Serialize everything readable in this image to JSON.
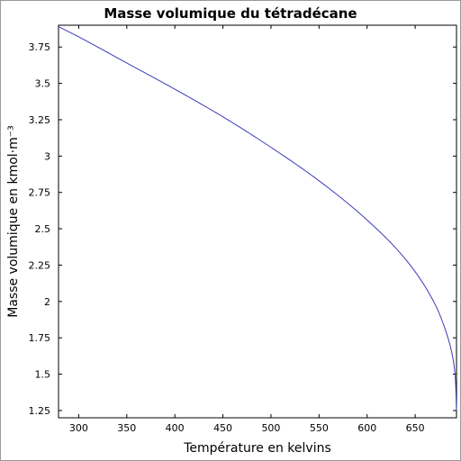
{
  "chart_data": {
    "type": "line",
    "title": "Masse volumique du tétradécane",
    "xlabel": "Température en kelvins",
    "ylabel": "Masse volumique en kmol·m⁻³",
    "xlim": [
      279,
      693
    ],
    "ylim": [
      1.2,
      3.9
    ],
    "xticks": [
      300,
      350,
      400,
      450,
      500,
      550,
      600,
      650
    ],
    "xtick_labels": [
      "300",
      "350",
      "400",
      "450",
      "500",
      "550",
      "600",
      "650"
    ],
    "yticks": [
      1.25,
      1.5,
      1.75,
      2,
      2.25,
      2.5,
      2.75,
      3,
      3.25,
      3.5,
      3.75
    ],
    "ytick_labels": [
      "1.25",
      "1.5",
      "1.75",
      "2",
      "2.25",
      "2.5",
      "2.75",
      "3",
      "3.25",
      "3.5",
      "3.75"
    ],
    "grid": false,
    "line_color": "#3b3bb8",
    "series": [
      {
        "x": [
          279,
          300,
          350,
          400,
          450,
          500,
          550,
          600,
          640,
          670,
          685,
          690,
          692,
          693
        ],
        "y": [
          3.89,
          3.82,
          3.64,
          3.46,
          3.27,
          3.06,
          2.83,
          2.56,
          2.29,
          1.99,
          1.73,
          1.58,
          1.45,
          1.25
        ]
      }
    ]
  }
}
